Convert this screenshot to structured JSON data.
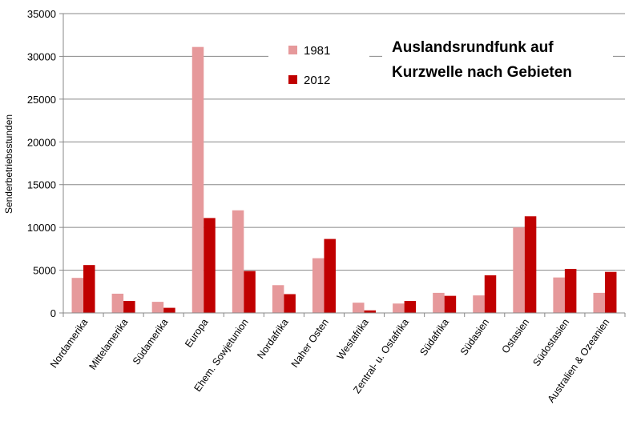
{
  "chart_data": {
    "type": "bar",
    "title_lines": [
      "Auslandsrundfunk auf",
      "Kurzwelle nach Gebieten"
    ],
    "ylabel": "Senderbetriebsstunden",
    "xlabel": "",
    "ylim": [
      0,
      35000
    ],
    "yticks": [
      "0",
      "5000",
      "10000",
      "15000",
      "20000",
      "25000",
      "30000",
      "35000"
    ],
    "grid": true,
    "legend_position": "top-center",
    "categories": [
      "Nordamerika",
      "Mittelamerika",
      "Südamerika",
      "Europa",
      "Ehem. Sowjetunion",
      "Nordafrika",
      "Naher Osten",
      "Westafrika",
      "Zentral- u. Ostafrika",
      "Südafrika",
      "Südasien",
      "Ostasien",
      "Südostasien",
      "Australien & Ozeanien"
    ],
    "series": [
      {
        "name": "1981",
        "color": "#e6999b",
        "values": [
          4100,
          2250,
          1300,
          31100,
          12000,
          3250,
          6400,
          1200,
          1100,
          2350,
          2050,
          10000,
          4150,
          2350
        ]
      },
      {
        "name": "2012",
        "color": "#c00000",
        "values": [
          5600,
          1400,
          600,
          11100,
          4900,
          2200,
          8650,
          300,
          1400,
          2000,
          4400,
          11300,
          5150,
          4800
        ]
      }
    ]
  }
}
